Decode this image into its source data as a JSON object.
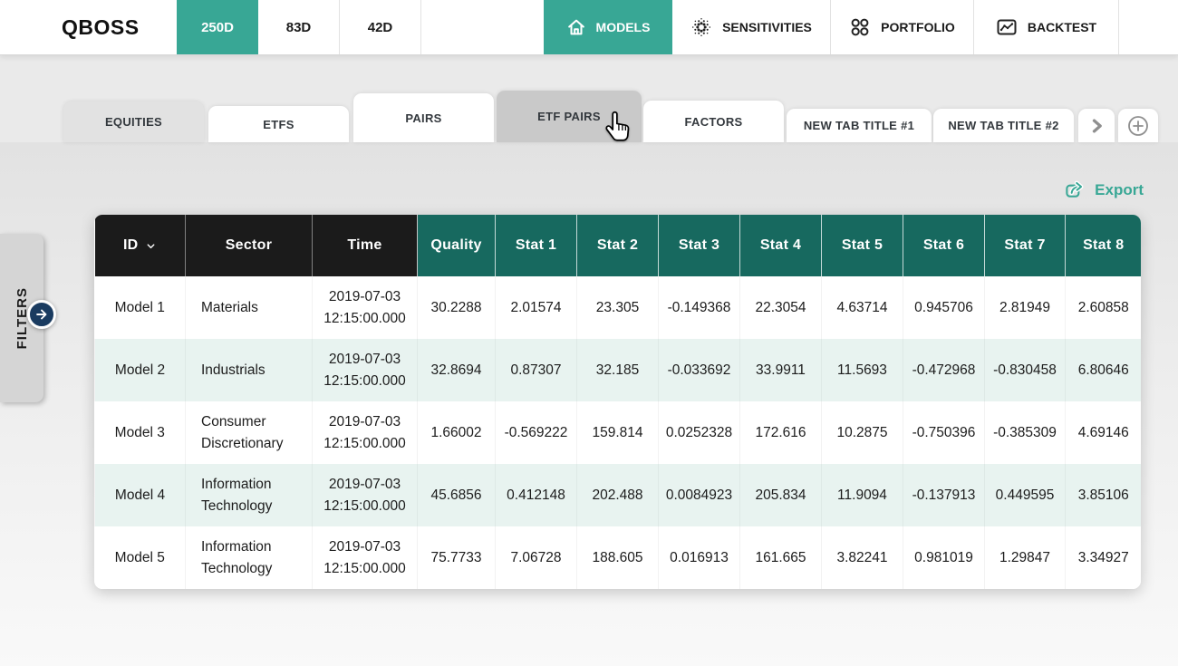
{
  "colors": {
    "accent": "#38A795",
    "header_dark": "#1B1B1B",
    "header_teal": "#17695F",
    "row_alt": "#E8F3F0",
    "navy": "#1A3B60"
  },
  "header": {
    "logo": "QBOSS",
    "period_tabs": [
      {
        "label": "250D",
        "active": true
      },
      {
        "label": "83D",
        "active": false
      },
      {
        "label": "42D",
        "active": false
      }
    ],
    "nav": [
      {
        "label": "MODELS",
        "icon": "home-icon",
        "active": true
      },
      {
        "label": "SENSITIVITIES",
        "icon": "dot-cluster-icon",
        "active": false
      },
      {
        "label": "PORTFOLIO",
        "icon": "grid-circles-icon",
        "active": false
      },
      {
        "label": "BACKTEST",
        "icon": "chart-window-icon",
        "active": false
      }
    ]
  },
  "tab_bar": {
    "tabs": [
      {
        "label": "EQUITIES",
        "state": "selected"
      },
      {
        "label": "ETFS",
        "state": "normal"
      },
      {
        "label": "PAIRS",
        "state": "normal"
      },
      {
        "label": "ETF PAIRS",
        "state": "hovered"
      },
      {
        "label": "FACTORS",
        "state": "normal"
      },
      {
        "label": "NEW TAB TITLE #1",
        "state": "normal"
      },
      {
        "label": "NEW TAB TITLE #2",
        "state": "normal"
      }
    ]
  },
  "toolbar": {
    "export_label": "Export"
  },
  "filters_panel": {
    "label": "FILTERS"
  },
  "table": {
    "columns": [
      {
        "key": "id",
        "label": "ID",
        "group": "dark",
        "sortable": true
      },
      {
        "key": "sector",
        "label": "Sector",
        "group": "dark"
      },
      {
        "key": "time",
        "label": "Time",
        "group": "dark"
      },
      {
        "key": "quality",
        "label": "Quality",
        "group": "teal"
      },
      {
        "key": "stat1",
        "label": "Stat 1",
        "group": "teal"
      },
      {
        "key": "stat2",
        "label": "Stat 2",
        "group": "teal"
      },
      {
        "key": "stat3",
        "label": "Stat 3",
        "group": "teal"
      },
      {
        "key": "stat4",
        "label": "Stat 4",
        "group": "teal"
      },
      {
        "key": "stat5",
        "label": "Stat 5",
        "group": "teal"
      },
      {
        "key": "stat6",
        "label": "Stat 6",
        "group": "teal"
      },
      {
        "key": "stat7",
        "label": "Stat 7",
        "group": "teal"
      },
      {
        "key": "stat8",
        "label": "Stat 8",
        "group": "teal"
      }
    ],
    "rows": [
      [
        "Model 1",
        "Materials",
        "2019-07-03 12:15:00.000",
        "30.2288",
        "2.01574",
        "23.305",
        "-0.149368",
        "22.3054",
        "4.63714",
        "0.945706",
        "2.81949",
        "2.60858"
      ],
      [
        "Model 2",
        "Industrials",
        "2019-07-03 12:15:00.000",
        "32.8694",
        "0.87307",
        "32.185",
        "-0.033692",
        "33.9911",
        "11.5693",
        "-0.472968",
        "-0.830458",
        "6.80646"
      ],
      [
        "Model 3",
        "Consumer Discretionary",
        "2019-07-03 12:15:00.000",
        "1.66002",
        "-0.569222",
        "159.814",
        "0.0252328",
        "172.616",
        "10.2875",
        "-0.750396",
        "-0.385309",
        "4.69146"
      ],
      [
        "Model 4",
        "Information Technology",
        "2019-07-03 12:15:00.000",
        "45.6856",
        "0.412148",
        "202.488",
        "0.0084923",
        "205.834",
        "11.9094",
        "-0.137913",
        "0.449595",
        "3.85106"
      ],
      [
        "Model 5",
        "Information Technology",
        "2019-07-03 12:15:00.000",
        "75.7733",
        "7.06728",
        "188.605",
        "0.016913",
        "161.665",
        "3.82241",
        "0.981019",
        "1.29847",
        "3.34927"
      ]
    ]
  }
}
